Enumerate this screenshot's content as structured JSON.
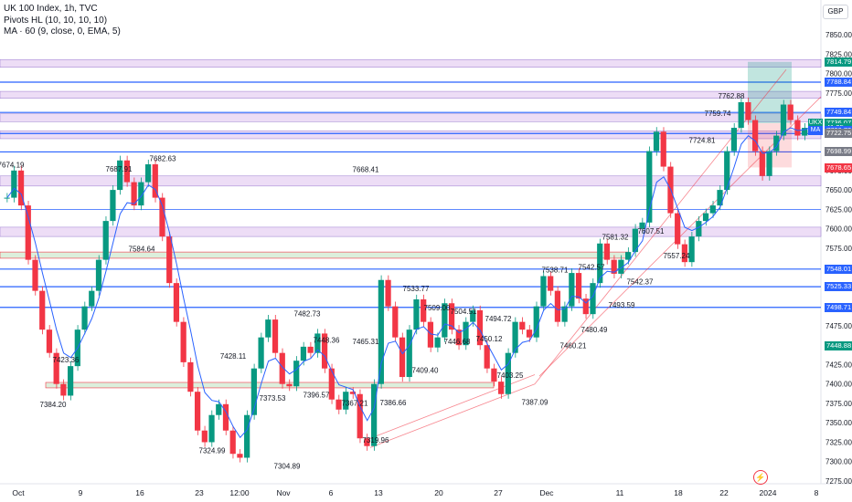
{
  "legend": {
    "title": "UK 100 Index, 1h, TVC",
    "indicator1": "Pivots HL (10, 10, 10, 10)",
    "indicator2": "MA · 60 (9, close, 0, EMA, 5)"
  },
  "currency_label": "GBP",
  "icons": {
    "bolt": "lightning-icon"
  },
  "colors": {
    "up": "#089981",
    "down": "#f23645",
    "level": "#2962ff",
    "zone_purple": "#e9d5f5",
    "zone_green": "#dcefdc",
    "ma": "#2962ff"
  },
  "chart_data": {
    "type": "candlestick",
    "title": "UK 100 Index, 1h, TVC",
    "y_axis": {
      "range": [
        7270,
        7840
      ],
      "ticks": [
        "7850.00",
        "7825.00",
        "7800.00",
        "7775.00",
        "7750.00",
        "7725.00",
        "7700.00",
        "7675.00",
        "7650.00",
        "7625.00",
        "7600.00",
        "7575.00",
        "7550.00",
        "7525.00",
        "7500.00",
        "7475.00",
        "7450.00",
        "7425.00",
        "7400.00",
        "7375.00",
        "7350.00",
        "7325.00",
        "7300.00",
        "7275.00"
      ]
    },
    "x_axis": {
      "ticks": [
        "Oct",
        "9",
        "16",
        "23",
        "12:00",
        "Nov",
        "6",
        "13",
        "20",
        "27",
        "Dec",
        "11",
        "18",
        "22",
        "2024",
        "8"
      ]
    },
    "price_tags": [
      {
        "label": "7814.79",
        "value": 7814.79,
        "color": "#089981"
      },
      {
        "label": "7788.84",
        "value": 7788.84,
        "color": "#2962ff"
      },
      {
        "label": "7749.84",
        "value": 7749.84,
        "color": "#2962ff"
      },
      {
        "label": "7736.07",
        "value": 7736.07,
        "color": "#089981"
      },
      {
        "label": "41:35",
        "value": 7729.5,
        "color": "#089981"
      },
      {
        "label": "7726.78",
        "value": 7726.78,
        "color": "#2962ff"
      },
      {
        "label": "7722.75",
        "value": 7722.75,
        "color": "#787b86"
      },
      {
        "label": "7698.99",
        "value": 7698.99,
        "color": "#787b86"
      },
      {
        "label": "7678.65",
        "value": 7678.65,
        "color": "#f23645"
      },
      {
        "label": "7548.01",
        "value": 7548.01,
        "color": "#2962ff"
      },
      {
        "label": "7525.33",
        "value": 7525.33,
        "color": "#2962ff"
      },
      {
        "label": "7498.71",
        "value": 7498.71,
        "color": "#2962ff"
      },
      {
        "label": "7448.88",
        "value": 7448.88,
        "color": "#089981"
      }
    ],
    "side_tags": [
      {
        "label": "UKX",
        "value": 7736.07,
        "color": "#089981"
      },
      {
        "label": "MA",
        "value": 7726.78,
        "color": "#2962ff"
      }
    ],
    "horizontal_levels": [
      7788.84,
      7749.84,
      7722.75,
      7698.99,
      7625.0,
      7548.01,
      7525.33,
      7498.71
    ],
    "zones": [
      {
        "from": 7808,
        "to": 7818,
        "kind": "purple"
      },
      {
        "from": 7768,
        "to": 7777,
        "kind": "purple"
      },
      {
        "from": 7738,
        "to": 7748,
        "kind": "purple"
      },
      {
        "from": 7716,
        "to": 7726,
        "kind": "purple"
      },
      {
        "from": 7655,
        "to": 7668,
        "kind": "purple"
      },
      {
        "from": 7590,
        "to": 7602,
        "kind": "purple"
      }
    ],
    "pivot_labels": [
      {
        "label": "7674.19",
        "value": 7674.19
      },
      {
        "label": "7687.91",
        "value": 7687.91
      },
      {
        "label": "7682.63",
        "value": 7682.63
      },
      {
        "label": "7584.64",
        "value": 7584.64
      },
      {
        "label": "7423.36",
        "value": 7423.36
      },
      {
        "label": "7384.20",
        "value": 7384.2
      },
      {
        "label": "7428.11",
        "value": 7428.11
      },
      {
        "label": "7324.99",
        "value": 7324.99
      },
      {
        "label": "7373.53",
        "value": 7373.53
      },
      {
        "label": "7304.89",
        "value": 7304.89
      },
      {
        "label": "7482.73",
        "value": 7482.73
      },
      {
        "label": "7396.57",
        "value": 7396.57
      },
      {
        "label": "7448.36",
        "value": 7448.36
      },
      {
        "label": "7465.31",
        "value": 7465.31
      },
      {
        "label": "7367.21",
        "value": 7367.21
      },
      {
        "label": "7386.66",
        "value": 7386.66
      },
      {
        "label": "7319.96",
        "value": 7319.96
      },
      {
        "label": "7533.77",
        "value": 7533.77
      },
      {
        "label": "7409.40",
        "value": 7409.4
      },
      {
        "label": "7509.00",
        "value": 7509.0
      },
      {
        "label": "7446.68",
        "value": 7446.68
      },
      {
        "label": "7504.51",
        "value": 7504.51
      },
      {
        "label": "7450.12",
        "value": 7450.12
      },
      {
        "label": "7494.72",
        "value": 7494.72
      },
      {
        "label": "7403.25",
        "value": 7403.25
      },
      {
        "label": "7387.09",
        "value": 7387.09
      },
      {
        "label": "7538.71",
        "value": 7538.71
      },
      {
        "label": "7460.21",
        "value": 7460.21
      },
      {
        "label": "7542.57",
        "value": 7542.57
      },
      {
        "label": "7480.49",
        "value": 7480.49
      },
      {
        "label": "7581.32",
        "value": 7581.32
      },
      {
        "label": "7542.37",
        "value": 7542.37
      },
      {
        "label": "7493.59",
        "value": 7493.59
      },
      {
        "label": "7607.51",
        "value": 7607.51
      },
      {
        "label": "7557.24",
        "value": 7557.24
      },
      {
        "label": "7724.81",
        "value": 7724.81
      },
      {
        "label": "7762.88",
        "value": 7762.88
      },
      {
        "label": "7759.74",
        "value": 7759.74
      },
      {
        "label": "7668.41",
        "value": 7668.41
      }
    ],
    "series_path": [
      7640,
      7675,
      7630,
      7560,
      7520,
      7470,
      7440,
      7400,
      7385,
      7423,
      7470,
      7500,
      7520,
      7560,
      7610,
      7650,
      7688,
      7660,
      7630,
      7660,
      7683,
      7640,
      7590,
      7530,
      7480,
      7428,
      7390,
      7340,
      7325,
      7360,
      7374,
      7340,
      7310,
      7305,
      7360,
      7420,
      7460,
      7483,
      7440,
      7400,
      7397,
      7430,
      7448,
      7440,
      7465,
      7420,
      7380,
      7367,
      7390,
      7387,
      7330,
      7320,
      7400,
      7534,
      7500,
      7460,
      7409,
      7470,
      7509,
      7480,
      7447,
      7460,
      7504,
      7470,
      7450,
      7480,
      7495,
      7450,
      7420,
      7403,
      7387,
      7440,
      7480,
      7470,
      7460,
      7500,
      7539,
      7520,
      7480,
      7500,
      7543,
      7510,
      7490,
      7530,
      7581,
      7560,
      7542,
      7560,
      7570,
      7600,
      7608,
      7700,
      7725,
      7680,
      7620,
      7580,
      7557,
      7590,
      7610,
      7620,
      7630,
      7650,
      7700,
      7730,
      7763,
      7740,
      7700,
      7668,
      7700,
      7720,
      7760,
      7740,
      7720,
      7730,
      7736
    ]
  }
}
